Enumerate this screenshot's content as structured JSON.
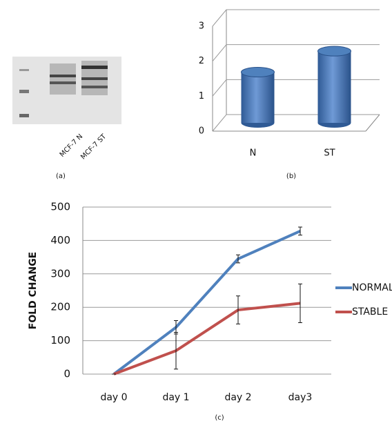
{
  "chart_data": [
    {
      "type": "image",
      "lanes": [
        "MCF-7 N",
        "MCF-7 ST"
      ],
      "caption": "(a)"
    },
    {
      "type": "bar",
      "caption": "(b)",
      "categories": [
        "N",
        "ST"
      ],
      "values": [
        1.45,
        2.05
      ],
      "color": "#4f81bd",
      "ylim": [
        0,
        3
      ],
      "yticks": [
        0,
        1,
        2,
        3
      ],
      "grid": true
    },
    {
      "type": "line",
      "caption": "(c)",
      "ylabel": "FOLD CHANGE",
      "categories": [
        "day 0",
        "day 1",
        "day 2",
        "day3"
      ],
      "ylim": [
        0,
        500
      ],
      "yticks": [
        0,
        100,
        200,
        300,
        400,
        500
      ],
      "grid": true,
      "legend": "right",
      "series": [
        {
          "name": "NORMAL",
          "color": "#4f81bd",
          "values": [
            0,
            140,
            345,
            428
          ],
          "errors": [
            0,
            20,
            12,
            12
          ]
        },
        {
          "name": "STABLE",
          "color": "#c0504d",
          "values": [
            0,
            70,
            192,
            212
          ],
          "errors": [
            0,
            55,
            42,
            58
          ]
        }
      ]
    }
  ]
}
